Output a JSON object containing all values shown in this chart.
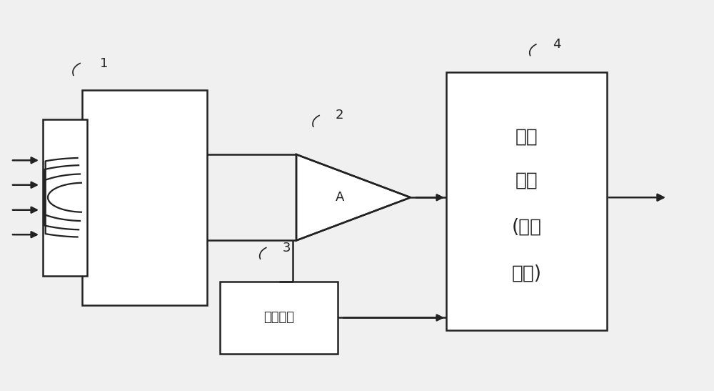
{
  "background_color": "#f0f0f0",
  "line_color": "#222222",
  "box_fill": "#ffffff",
  "label_1": "1",
  "label_2": "2",
  "label_3": "3",
  "label_4": "4",
  "amp_label": "A",
  "signal_text_line1": "信号",
  "signal_text_line2": "处理",
  "signal_text_line3": "(温度",
  "signal_text_line4": "计算)",
  "local_temp_text": "本地温度"
}
